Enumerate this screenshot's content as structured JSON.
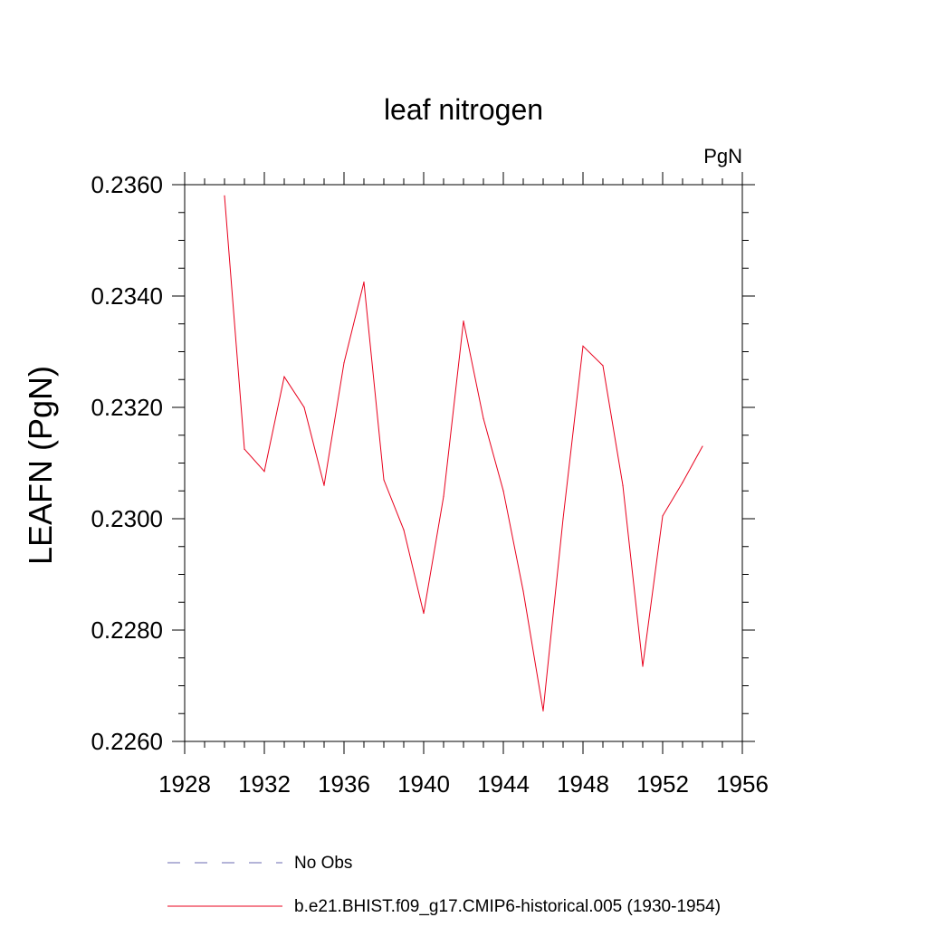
{
  "chart_data": {
    "type": "line",
    "title": "leaf nitrogen",
    "units": "PgN",
    "ylabel": "LEAFN  (PgN)",
    "xlabel": "",
    "xlim": [
      1928,
      1956
    ],
    "ylim": [
      0.226,
      0.236
    ],
    "xticks": [
      "1928",
      "1932",
      "1936",
      "1940",
      "1944",
      "1948",
      "1952",
      "1956"
    ],
    "yticks": [
      "0.2260",
      "0.2280",
      "0.2300",
      "0.2320",
      "0.2340",
      "0.2360"
    ],
    "grid": false,
    "series": [
      {
        "name": "b.e21.BHIST.f09_g17.CMIP6-historical.005 (1930-1954)",
        "color": "#e8001c",
        "style": "solid",
        "x": [
          1930,
          1931,
          1932,
          1933,
          1934,
          1935,
          1936,
          1937,
          1938,
          1939,
          1940,
          1941,
          1942,
          1943,
          1944,
          1945,
          1946,
          1947,
          1948,
          1949,
          1950,
          1951,
          1952,
          1953,
          1954
        ],
        "values": [
          0.2358,
          0.23125,
          0.23085,
          0.23255,
          0.232,
          0.2306,
          0.2328,
          0.23425,
          0.2307,
          0.2298,
          0.2283,
          0.2304,
          0.23355,
          0.2318,
          0.2305,
          0.2287,
          0.22655,
          0.23,
          0.2331,
          0.23275,
          0.2306,
          0.22735,
          0.23005,
          0.23065,
          0.2313
        ]
      }
    ],
    "legend": {
      "placement": "bottom",
      "entries": [
        {
          "label": "No Obs",
          "color": "#6a6ab0",
          "style": "dashed"
        },
        {
          "label": "b.e21.BHIST.f09_g17.CMIP6-historical.005 (1930-1954)",
          "color": "#e8001c",
          "style": "solid"
        }
      ]
    }
  }
}
